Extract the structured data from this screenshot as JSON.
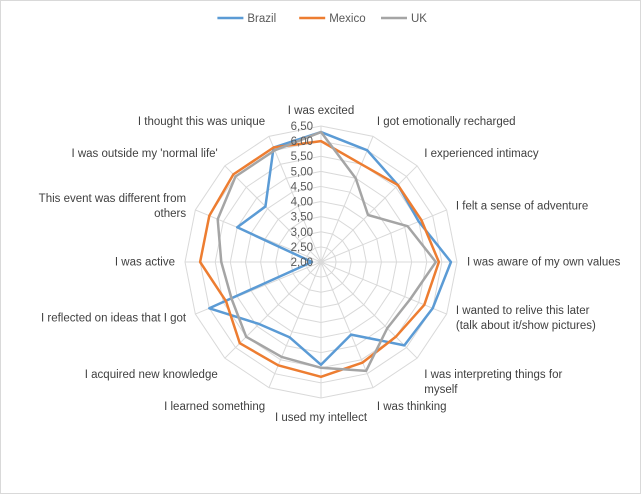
{
  "chart_data": {
    "type": "radar",
    "categories": [
      "I was excited",
      "I got emotionally recharged",
      "I experienced intimacy",
      "I felt a sense of adventure",
      "I was aware of my own values",
      "I wanted to relive this later (talk about it/show pictures)",
      "I was interpreting things for myself",
      "I was thinking",
      "I used my intellect",
      "I learned something",
      "I acquired new knowledge",
      "I reflected on ideas that I got",
      "I was active",
      "This event was different from others",
      "I was outside my 'normal life'",
      "I thought this was unique"
    ],
    "category_lines": [
      [
        "I was excited"
      ],
      [
        "I got emotionally recharged"
      ],
      [
        "I experienced intimacy"
      ],
      [
        "I felt a sense of adventure"
      ],
      [
        "I was aware of my own values"
      ],
      [
        "I wanted to relive this later",
        "(talk about it/show pictures)"
      ],
      [
        "I was interpreting things for",
        "myself"
      ],
      [
        "I was thinking"
      ],
      [
        "I used my intellect"
      ],
      [
        "I learned something"
      ],
      [
        "I acquired new knowledge"
      ],
      [
        "I reflected on ideas that I got"
      ],
      [
        "I was active"
      ],
      [
        "This event was different from",
        "others"
      ],
      [
        "I was outside my 'normal life'"
      ],
      [
        "I thought this was unique"
      ]
    ],
    "rlim": [
      2.0,
      6.5
    ],
    "ticks": [
      "2,00",
      "2,50",
      "3,00",
      "3,50",
      "4,00",
      "4,50",
      "5,00",
      "5,50",
      "6,00",
      "6,50"
    ],
    "tick_values": [
      2.0,
      2.5,
      3.0,
      3.5,
      4.0,
      4.5,
      5.0,
      5.5,
      6.0,
      6.5
    ],
    "series": [
      {
        "name": "Brazil",
        "color": "#5b9bd5",
        "values": [
          6.3,
          6.0,
          5.6,
          5.5,
          6.3,
          6.0,
          5.9,
          4.6,
          5.4,
          4.7,
          4.9,
          6.0,
          2.3,
          5.0,
          4.6,
          6.1
        ]
      },
      {
        "name": "Mexico",
        "color": "#ed7d31",
        "values": [
          6.0,
          5.5,
          5.6,
          5.6,
          5.9,
          5.7,
          5.5,
          5.6,
          5.8,
          5.7,
          5.8,
          5.4,
          6.0,
          6.0,
          6.1,
          6.1
        ]
      },
      {
        "name": "UK",
        "color": "#a5a5a5",
        "values": [
          6.3,
          5.0,
          4.2,
          5.1,
          5.8,
          5.2,
          5.1,
          5.9,
          5.5,
          5.4,
          5.5,
          5.2,
          5.3,
          5.7,
          6.0,
          6.0
        ]
      }
    ],
    "legend_position": "top"
  }
}
